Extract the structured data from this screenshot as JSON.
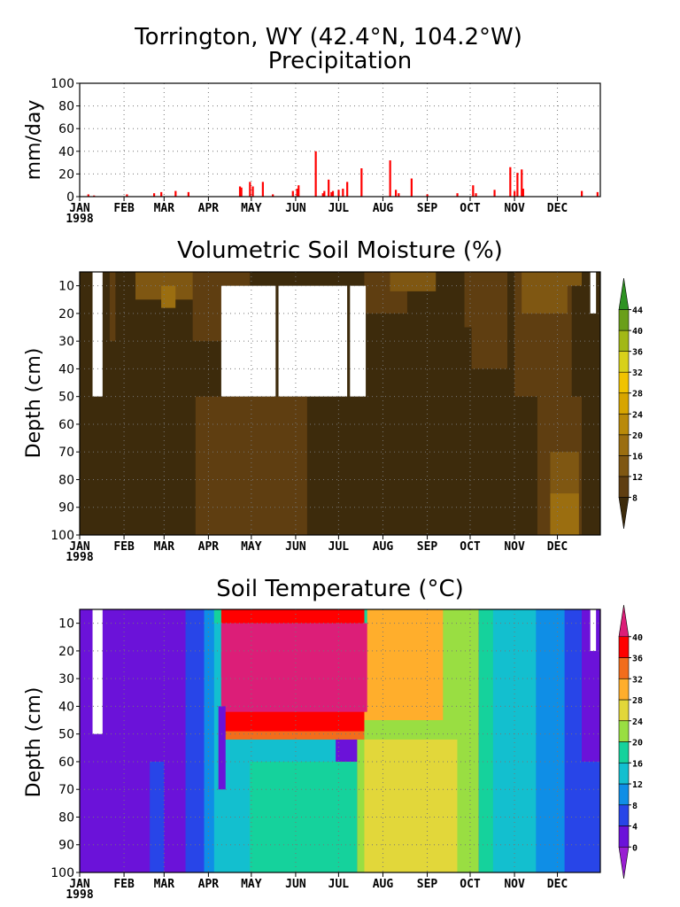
{
  "figure": {
    "title": "Torrington, WY   (42.4°N, 104.2°W)",
    "months": [
      "JAN",
      "FEB",
      "MAR",
      "APR",
      "MAY",
      "JUN",
      "JUL",
      "AUG",
      "SEP",
      "OCT",
      "NOV",
      "DEC"
    ],
    "year_label": "1998"
  },
  "chart_data": [
    {
      "type": "bar",
      "title": "Precipitation",
      "ylabel": "mm/day",
      "xlabel": "",
      "ylim": [
        0,
        100
      ],
      "yticks": [
        0,
        20,
        40,
        60,
        80,
        100
      ],
      "xlim_day_of_year": [
        1,
        365
      ],
      "grid": true,
      "bar_color": "#ff0000",
      "x": [
        7,
        11,
        34,
        53,
        58,
        68,
        77,
        113,
        114,
        120,
        122,
        129,
        136,
        150,
        153,
        154,
        166,
        171,
        172,
        175,
        177,
        178,
        182,
        185,
        188,
        198,
        218,
        222,
        224,
        233,
        244,
        265,
        276,
        278,
        291,
        302,
        305,
        307,
        310,
        311,
        352,
        363
      ],
      "values": [
        2,
        1,
        2,
        3,
        4,
        5,
        4,
        9,
        8,
        13,
        9,
        13,
        2,
        5,
        7,
        10,
        40,
        3,
        5,
        15,
        4,
        5,
        6,
        7,
        13,
        25,
        32,
        6,
        3,
        16,
        2,
        3,
        10,
        3,
        6,
        26,
        5,
        21,
        24,
        7,
        5,
        4
      ]
    },
    {
      "type": "heatmap",
      "title": "Volumetric Soil Moisture (%)",
      "ylabel": "Depth (cm)",
      "xlabel": "",
      "ylim": [
        100,
        5
      ],
      "yticks": [
        10,
        20,
        30,
        40,
        50,
        60,
        70,
        80,
        90,
        100
      ],
      "grid": true,
      "colorbar": {
        "levels": [
          8,
          12,
          16,
          20,
          24,
          28,
          32,
          36,
          40,
          44
        ],
        "colors": [
          "#3d2b0c",
          "#5f3e11",
          "#7f5712",
          "#9b6e10",
          "#b98a09",
          "#d7a500",
          "#f0c300",
          "#d8d11a",
          "#a2b816",
          "#6a9f1a",
          "#2e9222"
        ]
      },
      "background_class": 0,
      "missing_blocks": [
        {
          "x": [
            10,
            17
          ],
          "depth": [
            5,
            50
          ]
        },
        {
          "x": [
            100,
            138
          ],
          "depth": [
            10,
            50
          ]
        },
        {
          "x": [
            140,
            188
          ],
          "depth": [
            10,
            50
          ]
        },
        {
          "x": [
            190,
            201
          ],
          "depth": [
            10,
            50
          ]
        },
        {
          "x": [
            358,
            362
          ],
          "depth": [
            5,
            20
          ]
        }
      ],
      "regions": [
        {
          "x": [
            40,
            90
          ],
          "depth": [
            5,
            15
          ],
          "class": 2
        },
        {
          "x": [
            58,
            68
          ],
          "depth": [
            10,
            18
          ],
          "class": 3
        },
        {
          "x": [
            80,
            120
          ],
          "depth": [
            5,
            30
          ],
          "class": 1
        },
        {
          "x": [
            82,
            160
          ],
          "depth": [
            50,
            100
          ],
          "class": 1
        },
        {
          "x": [
            200,
            230
          ],
          "depth": [
            5,
            20
          ],
          "class": 1
        },
        {
          "x": [
            218,
            250
          ],
          "depth": [
            5,
            12
          ],
          "class": 2
        },
        {
          "x": [
            270,
            300
          ],
          "depth": [
            5,
            25
          ],
          "class": 1
        },
        {
          "x": [
            275,
            300
          ],
          "depth": [
            8,
            40
          ],
          "class": 1
        },
        {
          "x": [
            305,
            345
          ],
          "depth": [
            5,
            50
          ],
          "class": 1
        },
        {
          "x": [
            310,
            342
          ],
          "depth": [
            5,
            20
          ],
          "class": 2
        },
        {
          "x": [
            320,
            352
          ],
          "depth": [
            5,
            10
          ],
          "class": 2
        },
        {
          "x": [
            321,
            352
          ],
          "depth": [
            50,
            100
          ],
          "class": 1
        },
        {
          "x": [
            330,
            350
          ],
          "depth": [
            70,
            100
          ],
          "class": 2
        },
        {
          "x": [
            330,
            350
          ],
          "depth": [
            85,
            100
          ],
          "class": 3
        },
        {
          "x": [
            22,
            26
          ],
          "depth": [
            5,
            30
          ],
          "class": 1
        }
      ]
    },
    {
      "type": "heatmap",
      "title": "Soil Temperature (°C)",
      "ylabel": "Depth (cm)",
      "xlabel": "",
      "ylim": [
        100,
        5
      ],
      "yticks": [
        10,
        20,
        30,
        40,
        50,
        60,
        70,
        80,
        90,
        100
      ],
      "grid": true,
      "colorbar": {
        "levels": [
          0,
          4,
          8,
          12,
          16,
          20,
          24,
          28,
          32,
          36,
          40
        ],
        "colors": [
          "#9a1fd2",
          "#6b12d9",
          "#2845e8",
          "#0f8ee6",
          "#13bfcf",
          "#15d29c",
          "#99de42",
          "#e2d73a",
          "#ffae2c",
          "#f26d1c",
          "#ff0000",
          "#dc1e78"
        ]
      },
      "background_class": 1,
      "missing_blocks": [
        {
          "x": [
            10,
            17
          ],
          "depth": [
            5,
            50
          ]
        },
        {
          "x": [
            358,
            362
          ],
          "depth": [
            5,
            20
          ]
        }
      ],
      "regions": [
        {
          "x": [
            50,
            60
          ],
          "depth": [
            60,
            100
          ],
          "class": 2
        },
        {
          "x": [
            75,
            95
          ],
          "depth": [
            5,
            100
          ],
          "class": 2
        },
        {
          "x": [
            88,
            100
          ],
          "depth": [
            5,
            100
          ],
          "class": 3
        },
        {
          "x": [
            95,
            180
          ],
          "depth": [
            5,
            100
          ],
          "class": 4
        },
        {
          "x": [
            120,
            195
          ],
          "depth": [
            60,
            100
          ],
          "class": 5
        },
        {
          "x": [
            195,
            280
          ],
          "depth": [
            5,
            100
          ],
          "class": 6
        },
        {
          "x": [
            200,
            265
          ],
          "depth": [
            52,
            100
          ],
          "class": 7
        },
        {
          "x": [
            200,
            255
          ],
          "depth": [
            5,
            45
          ],
          "class": 8
        },
        {
          "x": [
            95,
            202
          ],
          "depth": [
            5,
            10
          ],
          "class": 5
        },
        {
          "x": [
            100,
            200
          ],
          "depth": [
            5,
            52
          ],
          "class": 9
        },
        {
          "x": [
            100,
            200
          ],
          "depth": [
            5,
            49
          ],
          "class": 10
        },
        {
          "x": [
            100,
            202
          ],
          "depth": [
            10,
            42
          ],
          "class": 11
        },
        {
          "x": [
            280,
            320
          ],
          "depth": [
            5,
            100
          ],
          "class": 5
        },
        {
          "x": [
            290,
            340
          ],
          "depth": [
            5,
            100
          ],
          "class": 4
        },
        {
          "x": [
            320,
            350
          ],
          "depth": [
            5,
            100
          ],
          "class": 3
        },
        {
          "x": [
            340,
            365
          ],
          "depth": [
            5,
            100
          ],
          "class": 2
        },
        {
          "x": [
            352,
            365
          ],
          "depth": [
            5,
            60
          ],
          "class": 1
        },
        {
          "x": [
            98,
            103
          ],
          "depth": [
            40,
            70
          ],
          "class": 1
        }
      ]
    }
  ]
}
